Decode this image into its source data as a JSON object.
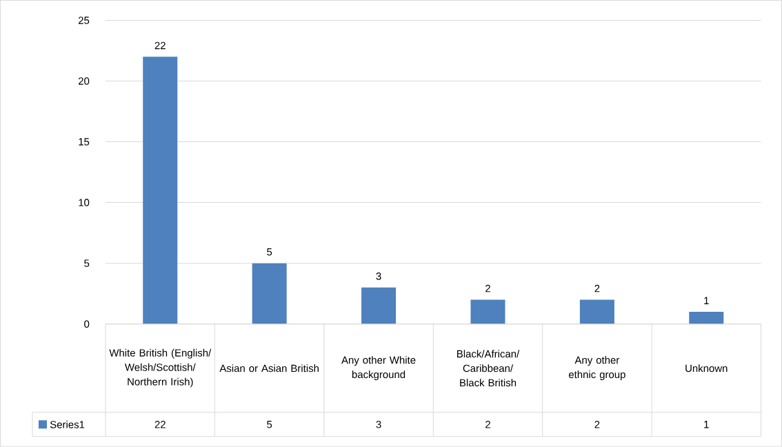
{
  "chart_data": {
    "type": "bar",
    "categories": [
      "White British (English/Welsh/Scottish/Northern Irish)",
      "Asian or Asian British",
      "Any other White background",
      "Black/African/Caribbean/Black British",
      "Any other ethnic group",
      "Unknown"
    ],
    "series": [
      {
        "name": "Series1",
        "color": "#4e81bd",
        "values": [
          22,
          5,
          3,
          2,
          2,
          1
        ],
        "value_labels": [
          "22",
          "5",
          "3",
          "2",
          "2",
          "1"
        ]
      }
    ],
    "ylim": [
      0,
      25
    ],
    "yticks": [
      0,
      5,
      10,
      15,
      20,
      25
    ],
    "grid": "y",
    "data_labels": true,
    "legend": "bottom"
  }
}
